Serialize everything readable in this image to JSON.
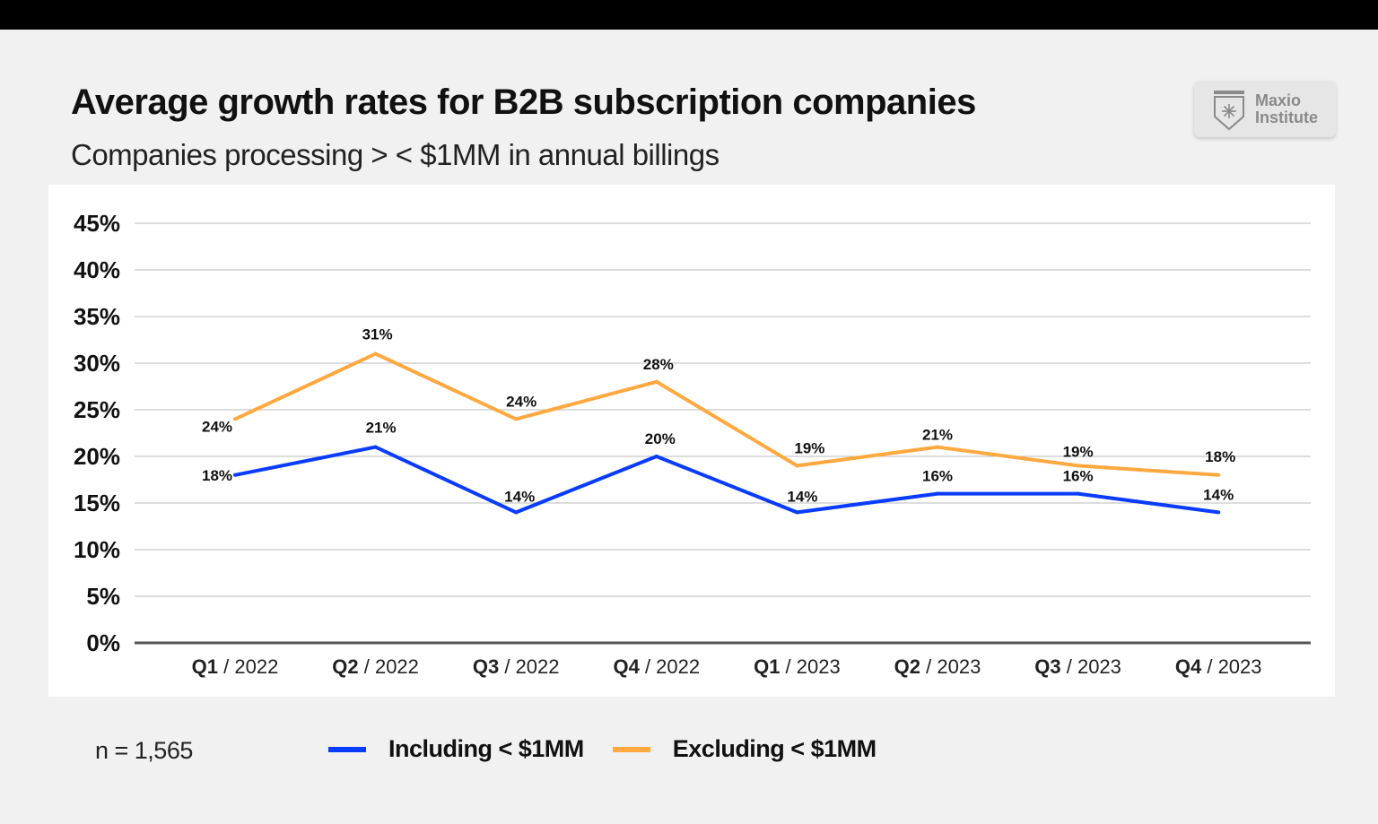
{
  "chart_data": {
    "type": "line",
    "title": "Average growth rates for B2B subscription companies",
    "subtitle": "Companies processing > < $1MM in annual billings",
    "categories": [
      "Q1 / 2022",
      "Q2 / 2022",
      "Q3 / 2022",
      "Q4 / 2022",
      "Q1 / 2023",
      "Q2 / 2023",
      "Q3 / 2023",
      "Q4 / 2023"
    ],
    "yticks": [
      "0%",
      "5%",
      "10%",
      "15%",
      "20%",
      "25%",
      "30%",
      "35%",
      "40%",
      "45%"
    ],
    "ylim": [
      0,
      45
    ],
    "grid": true,
    "legend_placement": "bottom",
    "series": [
      {
        "name": "Including < $1MM",
        "color": "#0a3cff",
        "values": [
          18,
          21,
          14,
          20,
          14,
          16,
          16,
          14
        ],
        "labels": [
          "18%",
          "21%",
          "14%",
          "20%",
          "14%",
          "16%",
          "16%",
          "14%"
        ]
      },
      {
        "name": "Excluding < $1MM",
        "color": "#ffa940",
        "values": [
          24,
          31,
          24,
          28,
          19,
          21,
          19,
          18
        ],
        "labels": [
          "24%",
          "31%",
          "24%",
          "28%",
          "19%",
          "21%",
          "19%",
          "18%"
        ]
      }
    ],
    "note": "n = 1,565"
  },
  "logo": {
    "text_line1": "Maxio",
    "text_line2": "Institute",
    "icon": "shield-snowflake-icon"
  }
}
